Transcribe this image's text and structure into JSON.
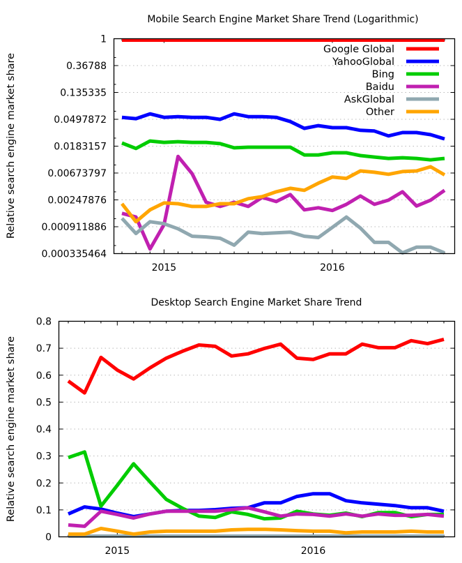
{
  "chart_data": [
    {
      "type": "line",
      "title": "Mobile Search Engine Market Share Trend (Logarithmic)",
      "xlabel": "",
      "ylabel": "Relative search engine market share",
      "yscale": "log",
      "ylim": [
        0.000335464,
        1
      ],
      "yticks": [
        "1",
        "0.36788",
        "0.135335",
        "0.0497872",
        "0.0183157",
        "0.00673797",
        "0.00247876",
        "0.000911886",
        "0.000335464"
      ],
      "xticks": [
        "2015",
        "2016"
      ],
      "x_count": 24,
      "xtick_index": [
        3,
        15
      ],
      "grid": true,
      "legend": "top-right",
      "series": [
        {
          "name": "Google Global",
          "color": "#ff0000",
          "values": [
            0.99,
            0.99,
            0.99,
            0.99,
            0.99,
            0.99,
            0.99,
            0.99,
            0.99,
            0.99,
            0.99,
            0.99,
            0.99,
            0.99,
            0.99,
            0.99,
            0.99,
            0.99,
            0.99,
            0.99,
            0.99,
            0.99,
            0.99,
            0.99
          ]
        },
        {
          "name": "YahooGlobal",
          "color": "#0000ff",
          "values": [
            0.0535,
            0.051,
            0.0609,
            0.0535,
            0.0549,
            0.0535,
            0.0535,
            0.0497,
            0.0609,
            0.0549,
            0.0549,
            0.0535,
            0.0458,
            0.0355,
            0.0393,
            0.0365,
            0.0365,
            0.033,
            0.0322,
            0.0268,
            0.0304,
            0.0304,
            0.0281,
            0.024
          ]
        },
        {
          "name": "Bing",
          "color": "#00cc00",
          "values": [
            0.0206,
            0.0168,
            0.0222,
            0.0211,
            0.0216,
            0.0211,
            0.0211,
            0.0201,
            0.0172,
            0.0176,
            0.0176,
            0.0176,
            0.0176,
            0.0132,
            0.0132,
            0.0143,
            0.0143,
            0.0129,
            0.0122,
            0.0116,
            0.0119,
            0.0116,
            0.011,
            0.0116
          ]
        },
        {
          "name": "Baidu",
          "color": "#c020b0",
          "values": [
            0.0015,
            0.00131,
            0.000398,
            0.000987,
            0.0125,
            0.00659,
            0.00227,
            0.00194,
            0.00227,
            0.00194,
            0.00272,
            0.00233,
            0.00302,
            0.00171,
            0.00185,
            0.00167,
            0.0021,
            0.00287,
            0.0021,
            0.00245,
            0.00335,
            0.00197,
            0.00245,
            0.00354
          ]
        },
        {
          "name": "AskGlobal",
          "color": "#90a8b0",
          "values": [
            0.00125,
            0.000709,
            0.0011,
            0.00102,
            0.000846,
            0.00064,
            0.000624,
            0.000594,
            0.000459,
            0.000746,
            0.000709,
            0.000727,
            0.000746,
            0.00064,
            0.000609,
            0.000891,
            0.00131,
            0.000868,
            0.000509,
            0.000509,
            0.000344,
            0.000426,
            0.000426,
            0.000344
          ]
        },
        {
          "name": "Other",
          "color": "#ffa500",
          "values": [
            0.00215,
            0.0011,
            0.00171,
            0.00221,
            0.00215,
            0.00194,
            0.00194,
            0.00215,
            0.00215,
            0.00259,
            0.00279,
            0.00335,
            0.00381,
            0.00354,
            0.00461,
            0.00581,
            0.00551,
            0.00729,
            0.00694,
            0.00643,
            0.00712,
            0.00729,
            0.00852,
            0.00628
          ]
        }
      ]
    },
    {
      "type": "line",
      "title": "Desktop Search Engine Market Share Trend",
      "xlabel": "",
      "ylabel": "Relative search engine market share",
      "yscale": "linear",
      "ylim": [
        0,
        0.8
      ],
      "yticks": [
        "0",
        "0.1",
        "0.2",
        "0.3",
        "0.4",
        "0.5",
        "0.6",
        "0.7",
        "0.8"
      ],
      "xticks": [
        "2015",
        "2016"
      ],
      "x_count": 24,
      "xtick_index": [
        3,
        15
      ],
      "grid": true,
      "legend": "none",
      "series": [
        {
          "name": "Google Global",
          "color": "#ff0000",
          "values": [
            0.578,
            0.534,
            0.666,
            0.619,
            0.586,
            0.627,
            0.663,
            0.689,
            0.712,
            0.707,
            0.671,
            0.679,
            0.699,
            0.715,
            0.663,
            0.658,
            0.679,
            0.679,
            0.715,
            0.702,
            0.702,
            0.728,
            0.717,
            0.733
          ]
        },
        {
          "name": "YahooGlobal",
          "color": "#0000ff",
          "values": [
            0.085,
            0.111,
            0.103,
            0.088,
            0.075,
            0.085,
            0.095,
            0.098,
            0.098,
            0.101,
            0.106,
            0.108,
            0.126,
            0.126,
            0.15,
            0.16,
            0.16,
            0.134,
            0.126,
            0.121,
            0.116,
            0.108,
            0.108,
            0.095
          ]
        },
        {
          "name": "Bing",
          "color": "#00cc00",
          "values": [
            0.294,
            0.315,
            0.114,
            0.191,
            0.271,
            0.204,
            0.139,
            0.106,
            0.077,
            0.072,
            0.093,
            0.083,
            0.067,
            0.07,
            0.095,
            0.085,
            0.08,
            0.088,
            0.075,
            0.09,
            0.09,
            0.075,
            0.083,
            0.083
          ]
        },
        {
          "name": "Baidu",
          "color": "#c020b0",
          "values": [
            0.044,
            0.039,
            0.095,
            0.083,
            0.07,
            0.085,
            0.095,
            0.095,
            0.095,
            0.095,
            0.101,
            0.108,
            0.093,
            0.077,
            0.085,
            0.083,
            0.077,
            0.085,
            0.077,
            0.085,
            0.08,
            0.08,
            0.083,
            0.077
          ]
        },
        {
          "name": "AskGlobal",
          "color": "#90a8b0",
          "values": [
            0.002,
            0.002,
            0.002,
            0.002,
            0.002,
            0.002,
            0.002,
            0.002,
            0.002,
            0.002,
            0.002,
            0.002,
            0.002,
            0.002,
            0.002,
            0.002,
            0.002,
            0.002,
            0.002,
            0.002,
            0.002,
            0.002,
            0.002,
            0.002
          ]
        },
        {
          "name": "Other",
          "color": "#ffa500",
          "values": [
            0.01,
            0.01,
            0.031,
            0.021,
            0.01,
            0.018,
            0.021,
            0.021,
            0.021,
            0.021,
            0.026,
            0.028,
            0.028,
            0.026,
            0.023,
            0.021,
            0.021,
            0.015,
            0.018,
            0.018,
            0.018,
            0.021,
            0.018,
            0.018
          ]
        }
      ]
    }
  ]
}
